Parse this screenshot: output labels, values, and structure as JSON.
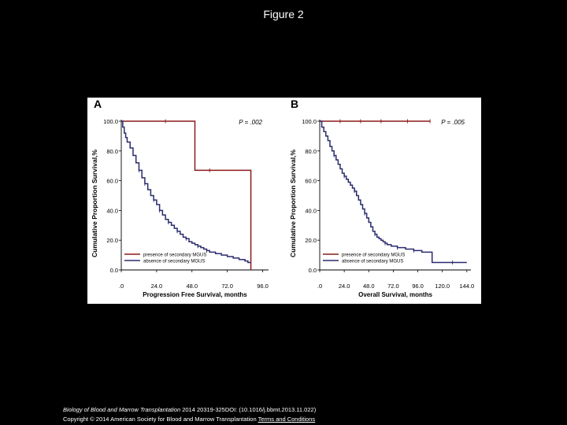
{
  "page": {
    "title": "Figure 2",
    "caption": {
      "journal": "Biology of Blood and Marrow Transplantation",
      "citation": " 2014 20319-325DOI: (10.1016/j.bbmt.2013.11.022)",
      "copyright": "Copyright © 2014 American Society for Blood and Marrow Transplantation ",
      "terms_link": "Terms and Conditions"
    }
  },
  "colors": {
    "present": "#8b1a1a",
    "absent": "#2b2b6e",
    "axis": "#000000"
  },
  "chart_data": [
    {
      "type": "line",
      "panel_label": "A",
      "pvalue": "P = .002",
      "xlabel": "Progression Free Survival, months",
      "ylabel": "Cumulative Proportion Survival,%",
      "xlim": [
        0,
        100
      ],
      "ylim": [
        0,
        100
      ],
      "x_ticks": [
        0,
        24,
        48,
        72,
        96
      ],
      "x_tick_labels": [
        ".0",
        "24.0",
        "48.0",
        "72.0",
        "96.0"
      ],
      "y_ticks": [
        0,
        20,
        40,
        60,
        80,
        100
      ],
      "y_tick_labels": [
        "0.0",
        "20.0",
        "40.0",
        "60.0",
        "80.0",
        "100.0"
      ],
      "series": [
        {
          "name": "presence of secondary MGUS",
          "color": "#8b1a1a",
          "x": [
            0,
            50,
            50,
            88,
            88
          ],
          "y": [
            100,
            100,
            67,
            67,
            0
          ],
          "censored": [
            [
              30,
              100
            ],
            [
              60,
              67
            ]
          ]
        },
        {
          "name": "absence of secondary MGUS",
          "color": "#2b2b6e",
          "x": [
            0,
            1,
            2,
            3,
            4,
            6,
            8,
            10,
            12,
            14,
            16,
            18,
            20,
            22,
            24,
            26,
            28,
            30,
            32,
            34,
            36,
            38,
            40,
            42,
            44,
            46,
            48,
            50,
            52,
            54,
            56,
            58,
            60,
            62,
            64,
            66,
            68,
            70,
            72,
            74,
            76,
            78,
            80,
            82,
            84,
            86,
            88
          ],
          "y": [
            100,
            96,
            92,
            89,
            86,
            82,
            77,
            72,
            67,
            62,
            58,
            54,
            50,
            47,
            44,
            40,
            37,
            34,
            32,
            30,
            28,
            26,
            24,
            22,
            21,
            19,
            18,
            17,
            16,
            15,
            14,
            13,
            12,
            12,
            11,
            11,
            10,
            10,
            9,
            9,
            8,
            8,
            7,
            7,
            6,
            5,
            5
          ],
          "censored": [
            [
              12,
              67
            ],
            [
              16,
              58
            ],
            [
              22,
              47
            ],
            [
              26,
              40
            ],
            [
              32,
              32
            ],
            [
              38,
              26
            ],
            [
              44,
              21
            ],
            [
              52,
              16
            ],
            [
              58,
              13
            ]
          ]
        }
      ]
    },
    {
      "type": "line",
      "panel_label": "B",
      "pvalue": "P = .005",
      "xlabel": "Overall Survival, months",
      "ylabel": "Cumulative Proportion Survival,%",
      "xlim": [
        0,
        148
      ],
      "ylim": [
        0,
        100
      ],
      "x_ticks": [
        0,
        24,
        48,
        72,
        96,
        120,
        144
      ],
      "x_tick_labels": [
        ".0",
        "24.0",
        "48.0",
        "72.0",
        "96.0",
        "120.0",
        "144.0"
      ],
      "y_ticks": [
        0,
        20,
        40,
        60,
        80,
        100
      ],
      "y_tick_labels": [
        "0.0",
        "20.0",
        "40.0",
        "60.0",
        "80.0",
        "100.0"
      ],
      "series": [
        {
          "name": "presence of secondary MGUS",
          "color": "#8b1a1a",
          "x": [
            0,
            108
          ],
          "y": [
            100,
            100
          ],
          "censored": [
            [
              20,
              100
            ],
            [
              40,
              100
            ],
            [
              60,
              100
            ],
            [
              86,
              100
            ],
            [
              108,
              100
            ]
          ]
        },
        {
          "name": "absence of secondary MGUS",
          "color": "#2b2b6e",
          "x": [
            0,
            2,
            4,
            6,
            8,
            10,
            12,
            14,
            16,
            18,
            20,
            22,
            24,
            26,
            28,
            30,
            32,
            34,
            36,
            38,
            40,
            42,
            44,
            46,
            48,
            50,
            52,
            54,
            56,
            58,
            60,
            62,
            64,
            66,
            68,
            70,
            72,
            76,
            80,
            84,
            88,
            92,
            96,
            100,
            104,
            110,
            130,
            144
          ],
          "y": [
            100,
            96,
            93,
            90,
            87,
            83,
            80,
            77,
            74,
            71,
            68,
            65,
            63,
            61,
            59,
            57,
            55,
            53,
            50,
            47,
            44,
            41,
            38,
            35,
            32,
            29,
            26,
            24,
            22,
            21,
            20,
            19,
            18,
            17,
            17,
            16,
            16,
            15,
            15,
            14,
            14,
            13,
            13,
            12,
            12,
            5,
            5,
            5
          ],
          "censored": [
            [
              14,
              77
            ],
            [
              24,
              63
            ],
            [
              34,
              53
            ],
            [
              44,
              38
            ],
            [
              54,
              24
            ],
            [
              64,
              18
            ],
            [
              76,
              15
            ],
            [
              92,
              13
            ],
            [
              130,
              5
            ]
          ]
        }
      ]
    }
  ]
}
